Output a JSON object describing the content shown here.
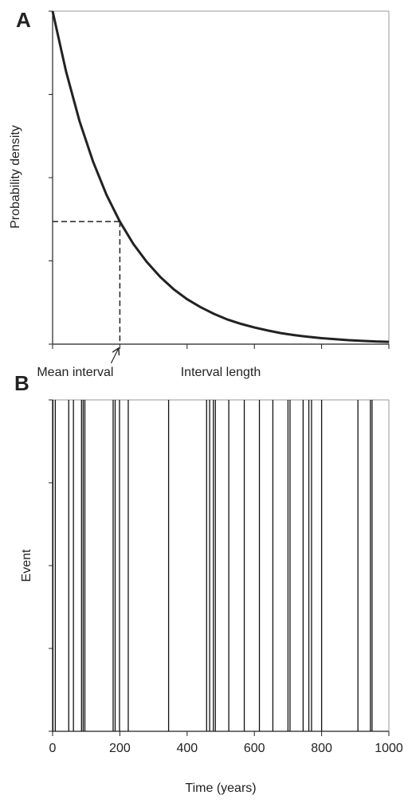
{
  "chart_data": [
    {
      "type": "line",
      "panel": "A",
      "xlabel": "Interval length",
      "ylabel": "Probability density",
      "x": [
        0,
        0.2,
        0.4,
        0.6,
        0.8,
        1,
        1.2,
        1.4,
        1.6,
        1.8,
        2,
        2.2,
        2.4,
        2.6,
        2.8,
        3,
        3.2,
        3.4,
        3.6,
        3.8,
        4,
        4.2,
        4.4,
        4.6,
        4.8,
        5
      ],
      "values": [
        1,
        0.819,
        0.67,
        0.549,
        0.449,
        0.368,
        0.301,
        0.247,
        0.202,
        0.165,
        0.135,
        0.111,
        0.091,
        0.074,
        0.061,
        0.05,
        0.041,
        0.033,
        0.027,
        0.022,
        0.018,
        0.015,
        0.012,
        0.01,
        0.008,
        0.007
      ],
      "color": "#222222",
      "xlim": [
        0,
        5
      ],
      "ylim": [
        0,
        1
      ],
      "xticks": [
        0,
        1,
        2,
        3,
        4,
        5
      ],
      "yticks": [
        0,
        0.25,
        0.5,
        0.75,
        1
      ],
      "annotations": [
        {
          "text": "Mean interval",
          "x": 1,
          "y": 0.368
        }
      ]
    },
    {
      "type": "event",
      "panel": "B",
      "xlabel": "Time (years)",
      "ylabel": "Event",
      "values": [
        1,
        8,
        48,
        62,
        86,
        91,
        96,
        180,
        186,
        199,
        225,
        345,
        458,
        467,
        478,
        484,
        524,
        570,
        615,
        655,
        700,
        706,
        745,
        762,
        770,
        800,
        908,
        945,
        950
      ],
      "color": "#111111",
      "xlim": [
        0,
        1000
      ],
      "ylim": [
        0,
        1
      ],
      "xticks": [
        0,
        200,
        400,
        600,
        800,
        1000
      ],
      "yticks": [
        0,
        0.25,
        0.5,
        0.75,
        1
      ],
      "xtick_labels": true
    }
  ]
}
